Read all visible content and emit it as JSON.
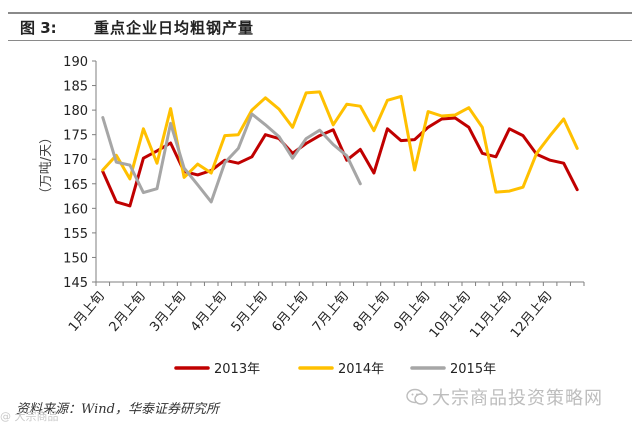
{
  "header": {
    "figure_number": "图 3:",
    "title": "重点企业日均粗钢产量"
  },
  "footer": {
    "source": "资料来源：Wind，华泰证券研究所",
    "watermark": "大宗商品投资策略网",
    "corner_mark": "@ 大宗商品"
  },
  "chart_data": {
    "type": "line",
    "title": "重点企业日均粗钢产量",
    "ylabel": "（万吨/天）",
    "ylim": [
      145,
      190
    ],
    "yticks": [
      145,
      150,
      155,
      160,
      165,
      170,
      175,
      180,
      185,
      190
    ],
    "x_tick_labels": [
      {
        "label": "1月上旬",
        "index": 0
      },
      {
        "label": "2月上旬",
        "index": 3
      },
      {
        "label": "3月上旬",
        "index": 6
      },
      {
        "label": "4月上旬",
        "index": 9
      },
      {
        "label": "5月上旬",
        "index": 12
      },
      {
        "label": "6月上旬",
        "index": 15
      },
      {
        "label": "7月上旬",
        "index": 18
      },
      {
        "label": "8月上旬",
        "index": 21
      },
      {
        "label": "9月上旬",
        "index": 24
      },
      {
        "label": "10月上旬",
        "index": 27
      },
      {
        "label": "11月上旬",
        "index": 30
      },
      {
        "label": "12月上旬",
        "index": 33
      }
    ],
    "n_periods": 36,
    "grid": false,
    "legend_position": "bottom",
    "series": [
      {
        "name": "2013年",
        "color": "#c00000",
        "values": [
          167.5,
          161.3,
          160.5,
          170.2,
          171.7,
          173.3,
          167.5,
          166.8,
          167.7,
          169.8,
          169.2,
          170.5,
          175.0,
          174.2,
          171.2,
          173.2,
          174.8,
          176.0,
          169.8,
          172.0,
          167.2,
          176.2,
          173.8,
          174.0,
          176.5,
          178.2,
          178.4,
          176.5,
          171.2,
          170.5,
          176.2,
          174.8,
          171.0,
          169.8,
          169.2,
          163.8
        ]
      },
      {
        "name": "2014年",
        "color": "#ffc000",
        "values": [
          167.8,
          170.8,
          166.0,
          176.2,
          169.2,
          180.3,
          166.3,
          169.0,
          167.2,
          174.8,
          175.0,
          180.0,
          182.5,
          180.2,
          176.5,
          183.5,
          183.7,
          177.0,
          181.2,
          180.8,
          175.8,
          182.0,
          182.8,
          167.8,
          179.7,
          178.8,
          179.0,
          180.5,
          176.5,
          163.3,
          163.5,
          164.3,
          171.2,
          174.8,
          178.2,
          172.2
        ]
      },
      {
        "name": "2015年",
        "color": "#a6a6a6",
        "values": [
          178.5,
          169.4,
          168.8,
          163.2,
          164.0,
          177.3,
          168.2,
          164.8,
          161.3,
          169.3,
          172.2,
          179.2,
          177.0,
          174.6,
          170.2,
          174.2,
          175.9,
          173.0,
          170.7,
          165.0
        ]
      }
    ]
  }
}
